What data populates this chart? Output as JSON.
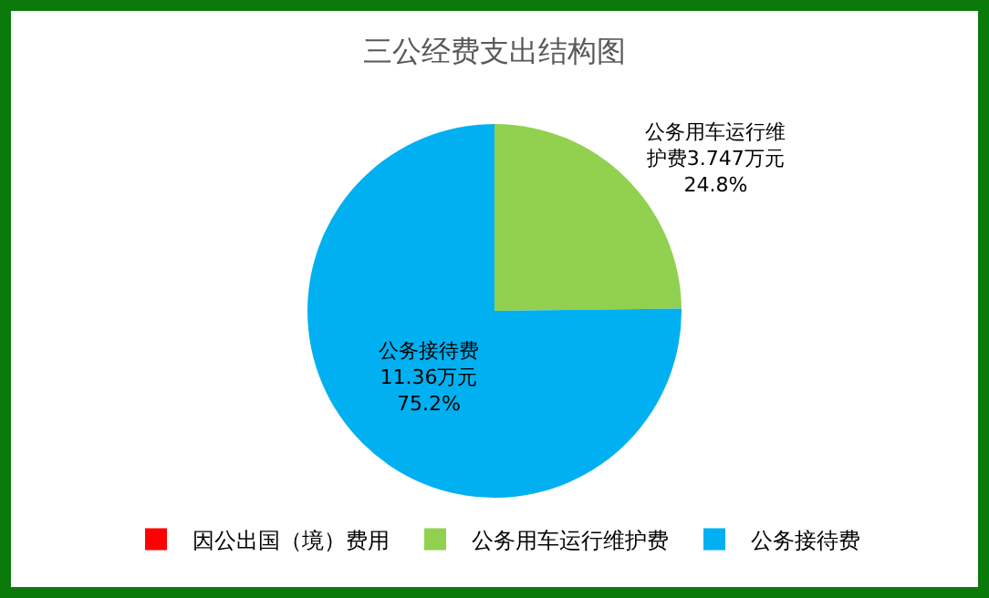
{
  "chart_data": {
    "type": "pie",
    "title": "三公经费支出结构图",
    "categories": [
      "因公出国（境）费用",
      "公务用车运行维护费",
      "公务接待费"
    ],
    "values": [
      0,
      3.747,
      11.36
    ],
    "colors": [
      "#ff0000",
      "#92d050",
      "#00b0f0"
    ],
    "value_labels": [
      null,
      "公务用车运行维护费3.747万元\n24.8%",
      "公务接待费11.36万元\n75.2%"
    ],
    "legend": "bottom"
  }
}
